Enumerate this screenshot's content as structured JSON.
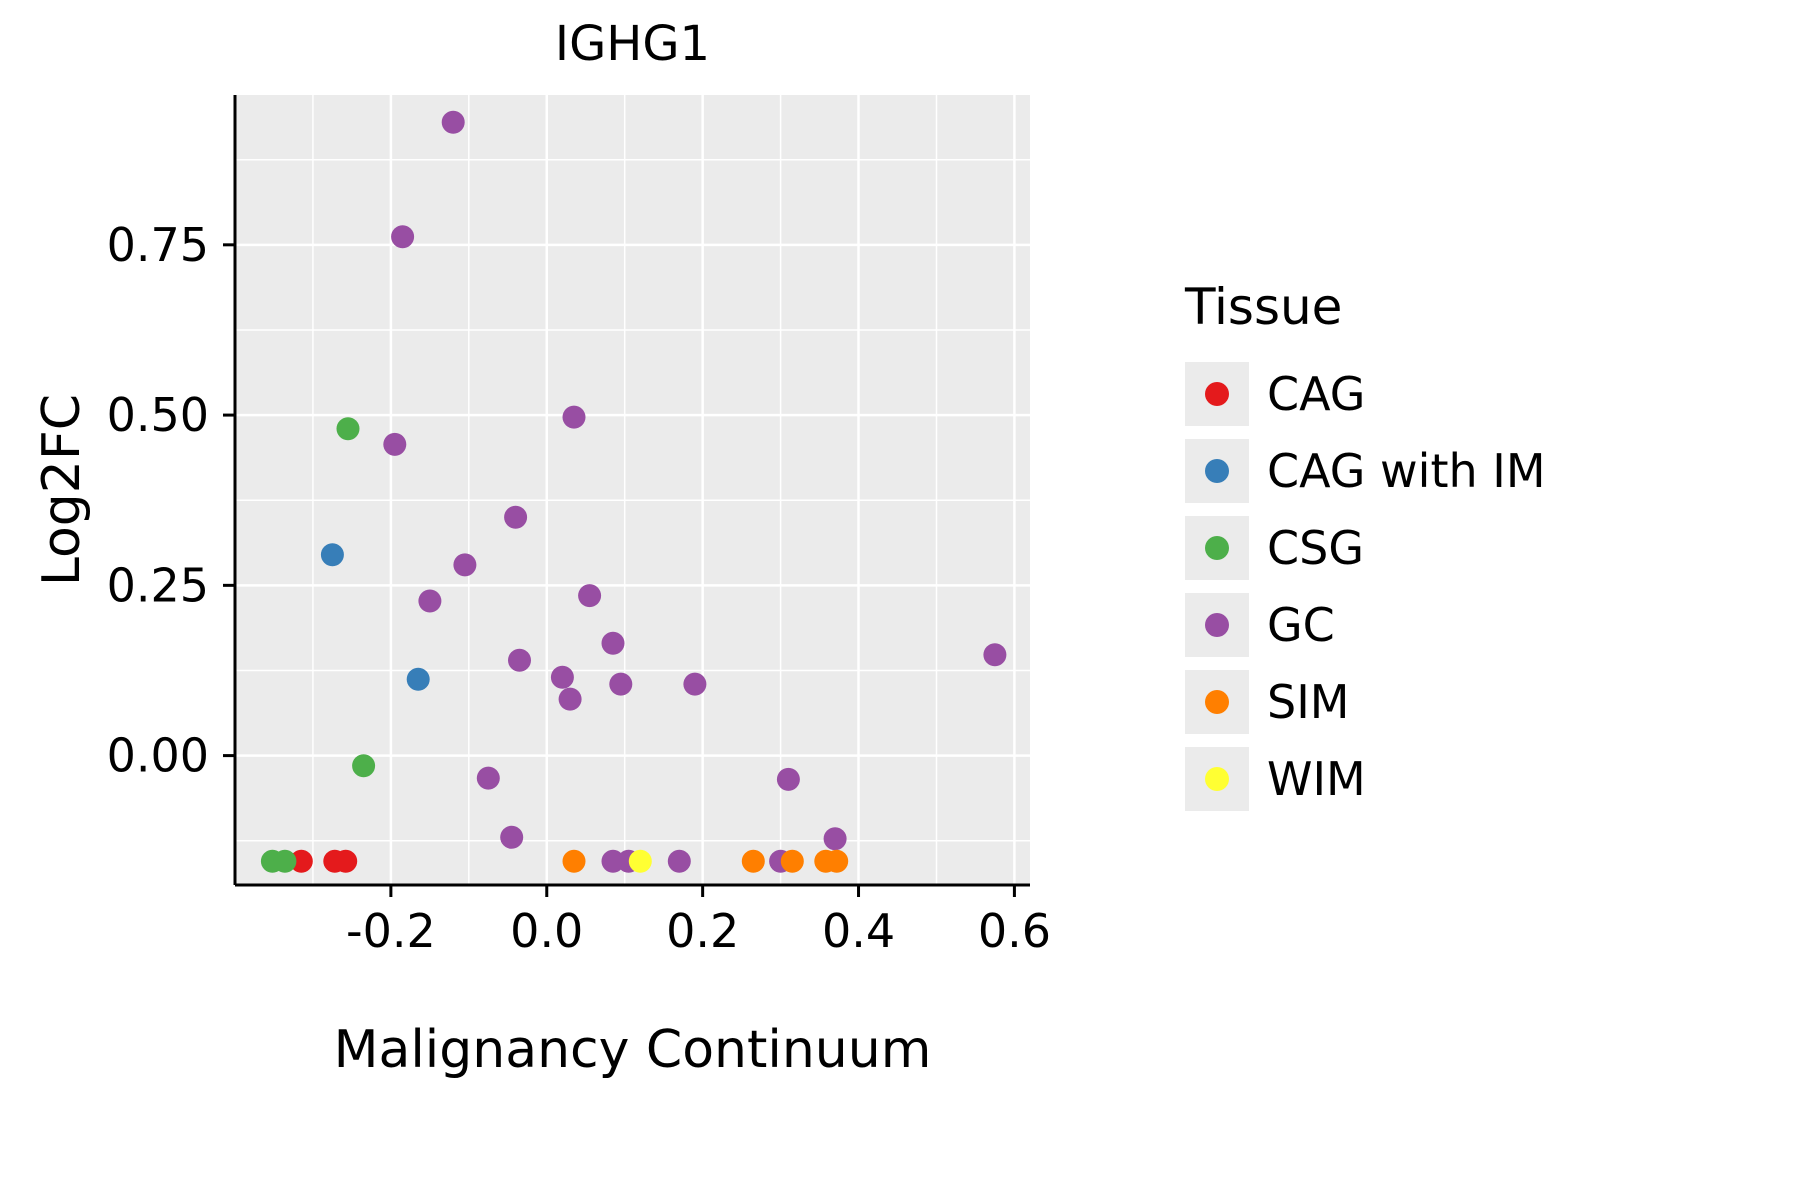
{
  "chart_data": {
    "type": "scatter",
    "title": "IGHG1",
    "xlabel": "Malignancy Continuum",
    "ylabel": "Log2FC",
    "legend_title": "Tissue",
    "legend_position": "right",
    "xlim": [
      -0.4,
      0.62
    ],
    "ylim": [
      -0.19,
      0.97
    ],
    "x_ticks": [
      -0.2,
      0.0,
      0.2,
      0.4,
      0.6
    ],
    "x_tick_labels": [
      "-0.2",
      "0.0",
      "0.2",
      "0.4",
      "0.6"
    ],
    "y_ticks": [
      0.0,
      0.25,
      0.5,
      0.75
    ],
    "y_tick_labels": [
      "0.00",
      "0.25",
      "0.50",
      "0.75"
    ],
    "x_minor_ticks": [
      -0.3,
      -0.1,
      0.1,
      0.3,
      0.5
    ],
    "y_minor_ticks": [
      -0.125,
      0.125,
      0.375,
      0.625,
      0.875
    ],
    "grid": true,
    "panel_background": "#EBEBEB",
    "gridline_color": "#FFFFFF",
    "axis_color": "#000000",
    "point_radius": 11.5,
    "series": [
      {
        "name": "CAG",
        "color": "#E41A1C",
        "points": [
          [
            -0.315,
            -0.155
          ],
          [
            -0.272,
            -0.155
          ],
          [
            -0.258,
            -0.155
          ]
        ]
      },
      {
        "name": "CAG with IM",
        "color": "#377EB8",
        "points": [
          [
            -0.275,
            0.295
          ],
          [
            -0.165,
            0.112
          ]
        ]
      },
      {
        "name": "CSG",
        "color": "#4DAF4A",
        "points": [
          [
            -0.255,
            0.48
          ],
          [
            -0.235,
            -0.015
          ],
          [
            -0.352,
            -0.155
          ],
          [
            -0.336,
            -0.155
          ]
        ]
      },
      {
        "name": "GC",
        "color": "#984EA3",
        "points": [
          [
            -0.12,
            0.93
          ],
          [
            -0.185,
            0.762
          ],
          [
            0.035,
            0.497
          ],
          [
            -0.195,
            0.457
          ],
          [
            -0.04,
            0.35
          ],
          [
            -0.105,
            0.28
          ],
          [
            0.055,
            0.235
          ],
          [
            -0.15,
            0.227
          ],
          [
            0.085,
            0.165
          ],
          [
            0.575,
            0.148
          ],
          [
            -0.035,
            0.14
          ],
          [
            0.02,
            0.115
          ],
          [
            0.095,
            0.105
          ],
          [
            0.19,
            0.105
          ],
          [
            0.03,
            0.083
          ],
          [
            -0.075,
            -0.033
          ],
          [
            0.31,
            -0.035
          ],
          [
            -0.045,
            -0.12
          ],
          [
            0.37,
            -0.122
          ],
          [
            0.085,
            -0.155
          ],
          [
            0.105,
            -0.155
          ],
          [
            0.17,
            -0.155
          ],
          [
            0.3,
            -0.155
          ]
        ]
      },
      {
        "name": "SIM",
        "color": "#FF7F00",
        "points": [
          [
            0.035,
            -0.155
          ],
          [
            0.265,
            -0.155
          ],
          [
            0.315,
            -0.155
          ],
          [
            0.358,
            -0.155
          ],
          [
            0.372,
            -0.155
          ]
        ]
      },
      {
        "name": "WIM",
        "color": "#FFFF33",
        "points": [
          [
            0.12,
            -0.155
          ]
        ]
      }
    ]
  }
}
